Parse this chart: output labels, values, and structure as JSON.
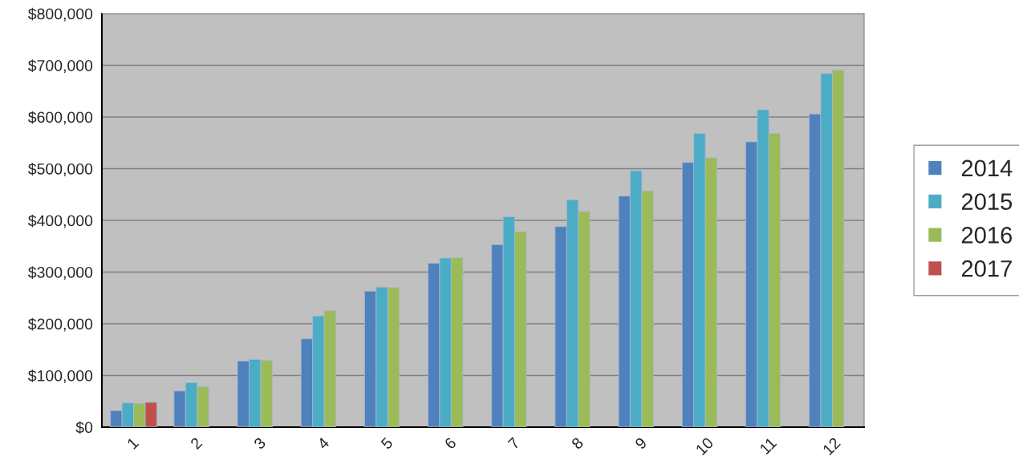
{
  "chart_data": {
    "type": "bar",
    "categories": [
      "1",
      "2",
      "3",
      "4",
      "5",
      "6",
      "7",
      "8",
      "9",
      "10",
      "11",
      "12"
    ],
    "series": [
      {
        "name": "2014",
        "color": "#4f81bd",
        "values": [
          32000,
          70000,
          128000,
          171000,
          263000,
          317000,
          353000,
          388000,
          447000,
          512000,
          552000,
          606000
        ]
      },
      {
        "name": "2015",
        "color": "#4bacc6",
        "values": [
          47000,
          86000,
          131000,
          215000,
          271000,
          327000,
          407000,
          440000,
          496000,
          568000,
          614000,
          684000
        ]
      },
      {
        "name": "2016",
        "color": "#9bbb59",
        "values": [
          46000,
          78000,
          129000,
          225000,
          270000,
          328000,
          378000,
          417000,
          457000,
          521000,
          568000,
          691000
        ]
      },
      {
        "name": "2017",
        "color": "#c0504d",
        "values": [
          48000,
          null,
          null,
          null,
          null,
          null,
          null,
          null,
          null,
          null,
          null,
          null
        ]
      }
    ],
    "ylim": [
      0,
      800000
    ],
    "yticks": [
      {
        "value": 0,
        "label": "$0"
      },
      {
        "value": 100000,
        "label": "$100,000"
      },
      {
        "value": 200000,
        "label": "$200,000"
      },
      {
        "value": 300000,
        "label": "$300,000"
      },
      {
        "value": 400000,
        "label": "$400,000"
      },
      {
        "value": 500000,
        "label": "$500,000"
      },
      {
        "value": 600000,
        "label": "$600,000"
      },
      {
        "value": 700000,
        "label": "$700,000"
      },
      {
        "value": 800000,
        "label": "$800,000"
      }
    ],
    "grid": "y",
    "legend": "right"
  }
}
